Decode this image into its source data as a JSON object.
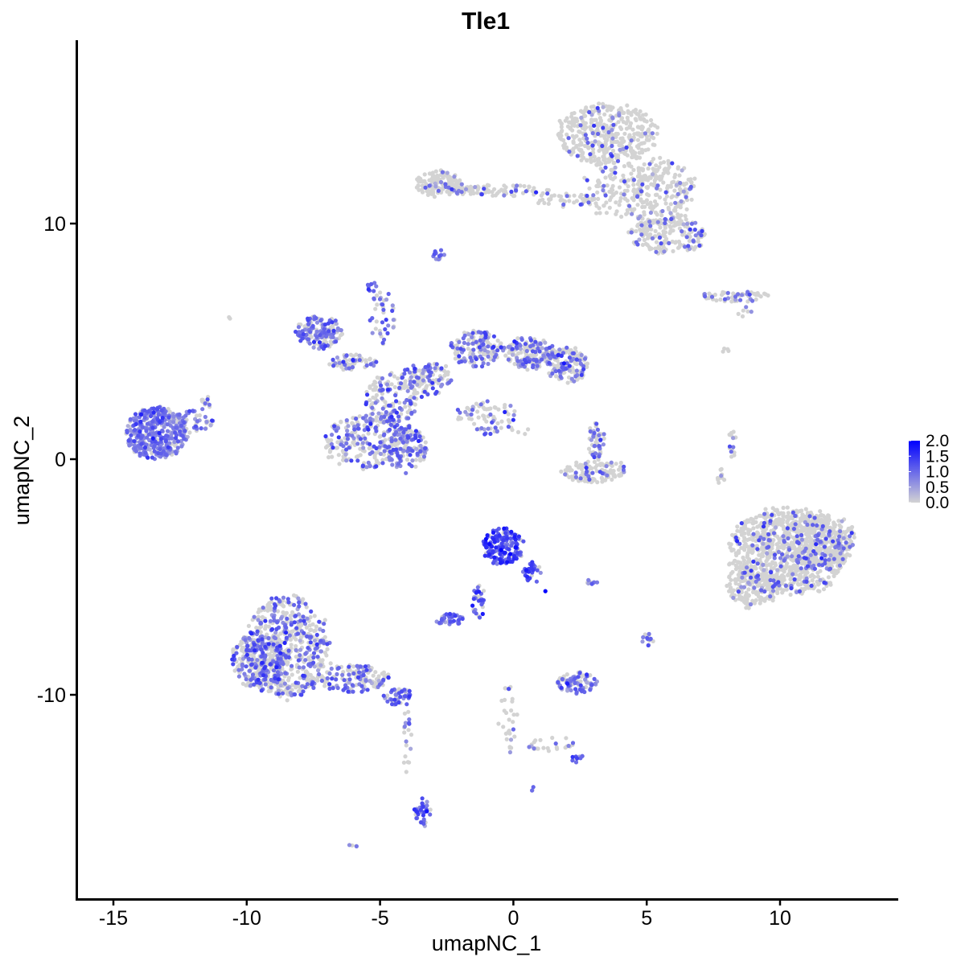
{
  "chart_data": {
    "type": "scatter",
    "title": "Tle1",
    "xlabel": "umapNC_1",
    "ylabel": "umapNC_2",
    "xlim": [
      -16.5,
      14.5
    ],
    "ylim": [
      -18.5,
      17.8
    ],
    "x_ticks": [
      -15,
      -10,
      -5,
      0,
      5,
      10
    ],
    "x_tick_labels": [
      "-15",
      "-10",
      "-5",
      "0",
      "5",
      "10"
    ],
    "y_ticks": [
      -10,
      0,
      10
    ],
    "y_tick_labels": [
      "-10",
      "0",
      "10"
    ],
    "grid": false,
    "legend_position": "right",
    "color_scale": {
      "low_color": "#d3d3d3",
      "high_color": "#0000ff",
      "min": 0.0,
      "max": 2.0,
      "breaks": [
        2.0,
        1.5,
        1.0,
        0.5,
        0.0
      ],
      "break_labels": [
        "2.0",
        "1.5",
        "1.0",
        "0.5",
        "0.0"
      ]
    },
    "clusters": [
      {
        "cx": 3.5,
        "cy": 13.8,
        "rx": 1.9,
        "ry": 1.3,
        "n": 400,
        "frac": 0.12,
        "mean": 0.9
      },
      {
        "cx": 3.8,
        "cy": 11.5,
        "rx": 1.2,
        "ry": 1.3,
        "n": 120,
        "frac": 0.1,
        "mean": 0.9
      },
      {
        "cx": 5.5,
        "cy": 11.3,
        "rx": 1.4,
        "ry": 1.5,
        "n": 220,
        "frac": 0.15,
        "mean": 0.9
      },
      {
        "cx": 5.8,
        "cy": 9.5,
        "rx": 1.5,
        "ry": 0.8,
        "n": 180,
        "frac": 0.18,
        "mean": 0.9
      },
      {
        "cx": -2.8,
        "cy": 11.7,
        "rx": 0.9,
        "ry": 0.55,
        "n": 120,
        "frac": 0.1,
        "mean": 0.8
      },
      {
        "cx": -0.5,
        "cy": 11.4,
        "rx": 2.0,
        "ry": 0.25,
        "n": 90,
        "frac": 0.2,
        "mean": 0.9
      },
      {
        "cx": 1.9,
        "cy": 11.0,
        "rx": 1.2,
        "ry": 0.3,
        "n": 40,
        "frac": 0.2,
        "mean": 0.9
      },
      {
        "cx": -2.8,
        "cy": 8.7,
        "rx": 0.25,
        "ry": 0.3,
        "n": 12,
        "frac": 0.8,
        "mean": 0.9
      },
      {
        "cx": 8.3,
        "cy": 6.9,
        "rx": 1.5,
        "ry": 0.22,
        "n": 60,
        "frac": 0.3,
        "mean": 0.9
      },
      {
        "cx": 8.7,
        "cy": 6.2,
        "rx": 0.3,
        "ry": 0.3,
        "n": 6,
        "frac": 0.5,
        "mean": 0.9
      },
      {
        "cx": 7.9,
        "cy": 4.6,
        "rx": 0.2,
        "ry": 0.2,
        "n": 4,
        "frac": 0,
        "mean": 0.5
      },
      {
        "cx": -13.4,
        "cy": 1.1,
        "rx": 1.2,
        "ry": 1.1,
        "n": 380,
        "frac": 0.78,
        "mean": 0.85
      },
      {
        "cx": -12.0,
        "cy": 1.6,
        "rx": 0.8,
        "ry": 0.5,
        "n": 50,
        "frac": 0.6,
        "mean": 0.85
      },
      {
        "cx": -11.6,
        "cy": 2.4,
        "rx": 0.3,
        "ry": 0.3,
        "n": 12,
        "frac": 0.5,
        "mean": 0.85
      },
      {
        "cx": -7.3,
        "cy": 5.4,
        "rx": 0.9,
        "ry": 0.7,
        "n": 160,
        "frac": 0.65,
        "mean": 0.85
      },
      {
        "cx": -6.0,
        "cy": 4.1,
        "rx": 0.9,
        "ry": 0.4,
        "n": 60,
        "frac": 0.4,
        "mean": 0.85
      },
      {
        "cx": -4.9,
        "cy": 6.0,
        "rx": 0.5,
        "ry": 1.2,
        "n": 40,
        "frac": 0.5,
        "mean": 0.9
      },
      {
        "cx": -5.3,
        "cy": 7.3,
        "rx": 0.22,
        "ry": 0.22,
        "n": 8,
        "frac": 1,
        "mean": 1.0
      },
      {
        "cx": -4.6,
        "cy": 2.5,
        "rx": 1.0,
        "ry": 1.2,
        "n": 150,
        "frac": 0.4,
        "mean": 0.9
      },
      {
        "cx": -3.3,
        "cy": 3.4,
        "rx": 1.0,
        "ry": 0.8,
        "n": 120,
        "frac": 0.35,
        "mean": 0.9
      },
      {
        "cx": -1.4,
        "cy": 4.7,
        "rx": 1.0,
        "ry": 0.8,
        "n": 160,
        "frac": 0.45,
        "mean": 0.9
      },
      {
        "cx": 0.6,
        "cy": 4.5,
        "rx": 1.0,
        "ry": 0.7,
        "n": 160,
        "frac": 0.45,
        "mean": 0.9
      },
      {
        "cx": 2.0,
        "cy": 4.0,
        "rx": 0.8,
        "ry": 0.8,
        "n": 140,
        "frac": 0.5,
        "mean": 0.9
      },
      {
        "cx": -1.0,
        "cy": 1.9,
        "rx": 1.2,
        "ry": 0.6,
        "n": 60,
        "frac": 0.3,
        "mean": 0.9
      },
      {
        "cx": -5.5,
        "cy": 0.7,
        "rx": 1.7,
        "ry": 1.2,
        "n": 260,
        "frac": 0.45,
        "mean": 0.9
      },
      {
        "cx": -4.0,
        "cy": 0.4,
        "rx": 0.8,
        "ry": 1.0,
        "n": 120,
        "frac": 0.6,
        "mean": 0.9
      },
      {
        "cx": -0.4,
        "cy": 1.2,
        "rx": 1.4,
        "ry": 0.2,
        "n": 20,
        "frac": 0.4,
        "mean": 0.9
      },
      {
        "cx": 3.1,
        "cy": 0.8,
        "rx": 0.35,
        "ry": 0.8,
        "n": 50,
        "frac": 0.4,
        "mean": 0.9
      },
      {
        "cx": 3.0,
        "cy": -0.5,
        "rx": 1.3,
        "ry": 0.5,
        "n": 120,
        "frac": 0.15,
        "mean": 0.9
      },
      {
        "cx": 8.2,
        "cy": 0.6,
        "rx": 0.15,
        "ry": 0.6,
        "n": 16,
        "frac": 0.5,
        "mean": 0.9
      },
      {
        "cx": 7.8,
        "cy": -0.8,
        "rx": 0.15,
        "ry": 0.4,
        "n": 10,
        "frac": 0.1,
        "mean": 0.8
      },
      {
        "cx": 10.3,
        "cy": -3.9,
        "rx": 2.3,
        "ry": 1.9,
        "n": 900,
        "frac": 0.13,
        "mean": 0.95
      },
      {
        "cx": 11.5,
        "cy": -3.4,
        "rx": 1.4,
        "ry": 1.2,
        "n": 250,
        "frac": 0.15,
        "mean": 0.95
      },
      {
        "cx": 9.0,
        "cy": -5.3,
        "rx": 1.0,
        "ry": 1.0,
        "n": 180,
        "frac": 0.1,
        "mean": 0.95
      },
      {
        "cx": -0.4,
        "cy": -3.7,
        "rx": 0.8,
        "ry": 0.8,
        "n": 160,
        "frac": 0.9,
        "mean": 1.3
      },
      {
        "cx": 0.7,
        "cy": -4.8,
        "rx": 0.35,
        "ry": 0.5,
        "n": 30,
        "frac": 0.85,
        "mean": 1.2
      },
      {
        "cx": -1.3,
        "cy": -6.0,
        "rx": 0.25,
        "ry": 0.8,
        "n": 30,
        "frac": 0.8,
        "mean": 1.0
      },
      {
        "cx": -2.4,
        "cy": -6.8,
        "rx": 0.55,
        "ry": 0.25,
        "n": 40,
        "frac": 0.8,
        "mean": 1.0
      },
      {
        "cx": 2.9,
        "cy": -5.2,
        "rx": 0.3,
        "ry": 0.12,
        "n": 10,
        "frac": 0.6,
        "mean": 0.9
      },
      {
        "cx": 5.0,
        "cy": -7.6,
        "rx": 0.25,
        "ry": 0.35,
        "n": 14,
        "frac": 0.6,
        "mean": 0.9
      },
      {
        "cx": 2.4,
        "cy": -9.5,
        "rx": 0.8,
        "ry": 0.45,
        "n": 90,
        "frac": 0.65,
        "mean": 0.9
      },
      {
        "cx": -8.5,
        "cy": -8.0,
        "rx": 1.6,
        "ry": 2.2,
        "n": 600,
        "frac": 0.4,
        "mean": 0.9
      },
      {
        "cx": -9.6,
        "cy": -8.6,
        "rx": 1.0,
        "ry": 1.3,
        "n": 220,
        "frac": 0.4,
        "mean": 0.9
      },
      {
        "cx": -6.0,
        "cy": -9.3,
        "rx": 1.4,
        "ry": 0.6,
        "n": 150,
        "frac": 0.45,
        "mean": 0.9
      },
      {
        "cx": -4.3,
        "cy": -10.1,
        "rx": 0.6,
        "ry": 0.4,
        "n": 50,
        "frac": 0.55,
        "mean": 0.9
      },
      {
        "cx": -4.0,
        "cy": -12.0,
        "rx": 0.2,
        "ry": 1.5,
        "n": 20,
        "frac": 0.4,
        "mean": 0.9
      },
      {
        "cx": -3.4,
        "cy": -15.0,
        "rx": 0.3,
        "ry": 0.6,
        "n": 40,
        "frac": 0.85,
        "mean": 1.0
      },
      {
        "cx": -0.2,
        "cy": -11.0,
        "rx": 0.4,
        "ry": 1.6,
        "n": 30,
        "frac": 0.2,
        "mean": 0.9
      },
      {
        "cx": 1.4,
        "cy": -12.1,
        "rx": 1.0,
        "ry": 0.35,
        "n": 25,
        "frac": 0.35,
        "mean": 0.9
      },
      {
        "cx": 2.4,
        "cy": -12.7,
        "rx": 0.25,
        "ry": 0.2,
        "n": 10,
        "frac": 0.9,
        "mean": 1.0
      },
      {
        "cx": -6.0,
        "cy": -16.4,
        "rx": 0.15,
        "ry": 0.15,
        "n": 4,
        "frac": 0.7,
        "mean": 0.9
      },
      {
        "cx": -10.6,
        "cy": 6.0,
        "rx": 0.1,
        "ry": 0.1,
        "n": 2,
        "frac": 0,
        "mean": 0.5
      },
      {
        "cx": 0.7,
        "cy": -14.0,
        "rx": 0.12,
        "ry": 0.12,
        "n": 3,
        "frac": 0.7,
        "mean": 1.0
      }
    ],
    "max_points": [
      {
        "x": 1.2,
        "y": -5.6,
        "value": 2.0
      },
      {
        "x": -0.9,
        "y": -3.6,
        "value": 1.9
      }
    ]
  }
}
